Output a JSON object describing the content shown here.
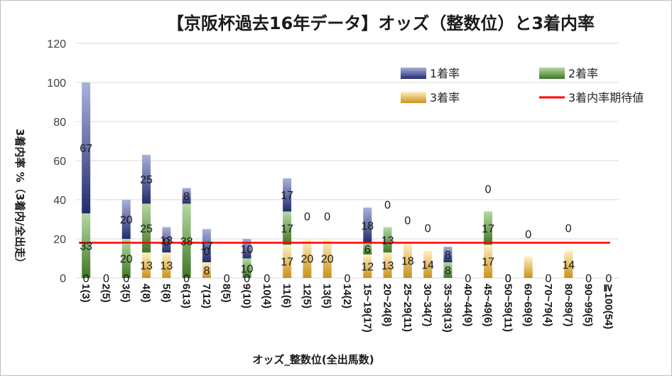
{
  "chart_data": {
    "type": "bar",
    "stacked": true,
    "title": "【京阪杯過去16年データ】オッズ（整数位）と3着内率",
    "xlabel": "オッズ_整数位(全出馬数)",
    "ylabel": "3着内率 %（3着内/全出走）",
    "ylim": [
      0,
      120
    ],
    "yticks": [
      0,
      20,
      40,
      60,
      80,
      100,
      120
    ],
    "grid": true,
    "legend_position": "top-right",
    "categories": [
      "1(3)",
      "2(5)",
      "3(5)",
      "4(8)",
      "5(8)",
      "6(13)",
      "7(12)",
      "8(5)",
      "9(10)",
      "10(4)",
      "11(6)",
      "12(5)",
      "13(5)",
      "14(2)",
      "15~19(17)",
      "20~24(8)",
      "25~29(11)",
      "30~34(7)",
      "35~39(13)",
      "40~44(9)",
      "45~49(6)",
      "50~59(11)",
      "60~69(9)",
      "70~79(4)",
      "80~89(7)",
      "90~99(5)",
      "≧100(54)"
    ],
    "series": [
      {
        "name": "1着率",
        "color": "#4a57a3",
        "values": [
          67,
          0,
          20,
          25,
          13,
          8,
          17,
          0,
          10,
          0,
          17,
          0,
          0,
          0,
          18,
          0,
          0,
          0,
          8,
          0,
          0,
          0,
          0,
          0,
          0,
          0,
          0
        ]
      },
      {
        "name": "2着率",
        "color": "#5e9a3f",
        "values": [
          33,
          0,
          20,
          25,
          0,
          38,
          0,
          0,
          10,
          0,
          17,
          0,
          0,
          0,
          6,
          13,
          0,
          0,
          8,
          0,
          17,
          0,
          0,
          0,
          0,
          0,
          0
        ]
      },
      {
        "name": "3着率",
        "color": "#d9a52e",
        "values": [
          0,
          0,
          0,
          13,
          13,
          0,
          8,
          0,
          0,
          0,
          17,
          20,
          20,
          0,
          12,
          13,
          18,
          14,
          0,
          0,
          17,
          0,
          11,
          0,
          14,
          0,
          0
        ]
      }
    ],
    "label_texts": {
      "1着率": [
        "67",
        "0",
        "20",
        "25",
        "13",
        "8",
        "17",
        "0",
        "10",
        "0",
        "17",
        "0",
        "0",
        "0",
        "18",
        "0",
        "0",
        "0",
        "8",
        "0",
        "0",
        "0",
        "0",
        "0",
        "0",
        "0",
        "0"
      ],
      "2着率": [
        "33",
        "",
        "20",
        "25",
        "0",
        "38",
        "0",
        "",
        "10",
        "",
        "17",
        "",
        "",
        "",
        "6",
        "13",
        "",
        "",
        "8",
        "",
        "17",
        "0",
        "",
        "",
        "",
        "",
        ""
      ],
      "3着率": [
        "0",
        "",
        "0",
        "13",
        "13",
        "0",
        "8",
        "",
        "0",
        "",
        "17",
        "20",
        "20",
        "",
        "12",
        "13",
        "18",
        "14",
        "",
        "",
        "17",
        "0",
        "",
        "",
        "14",
        "",
        ""
      ]
    },
    "reference_line": {
      "name": "3着内率期待値",
      "value": 18,
      "color": "#ff0000"
    }
  }
}
